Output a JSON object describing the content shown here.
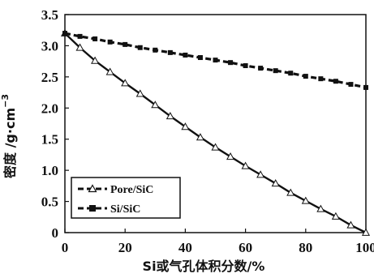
{
  "chart_data": {
    "type": "line",
    "xlabel": "Si或气孔体积分数/%",
    "ylabel": "密度 /g·cm",
    "ylabel_exponent": "−3",
    "xlim": [
      0,
      100
    ],
    "ylim": [
      0,
      3.5
    ],
    "xticks": [
      "0",
      "20",
      "40",
      "60",
      "80",
      "100"
    ],
    "yticks": [
      "0",
      "0.5",
      "1.0",
      "1.5",
      "2.0",
      "2.5",
      "3.0",
      "3.5"
    ],
    "legend_position": "lower-left",
    "series": [
      {
        "name": "Pore/SiC",
        "marker": "open-triangle",
        "color": "#111111",
        "x": [
          0,
          5,
          10,
          15,
          20,
          25,
          30,
          35,
          40,
          45,
          50,
          55,
          60,
          65,
          70,
          75,
          80,
          85,
          90,
          95,
          100
        ],
        "y": [
          3.2,
          2.97,
          2.76,
          2.58,
          2.4,
          2.23,
          2.05,
          1.87,
          1.7,
          1.53,
          1.37,
          1.22,
          1.07,
          0.93,
          0.79,
          0.64,
          0.51,
          0.38,
          0.26,
          0.12,
          0.0
        ]
      },
      {
        "name": "Si/SiC",
        "marker": "filled-square",
        "color": "#111111",
        "x": [
          0,
          5,
          10,
          15,
          20,
          25,
          30,
          35,
          40,
          45,
          50,
          55,
          60,
          65,
          70,
          75,
          80,
          85,
          90,
          95,
          100
        ],
        "y": [
          3.2,
          3.15,
          3.11,
          3.06,
          3.02,
          2.97,
          2.93,
          2.89,
          2.85,
          2.81,
          2.77,
          2.73,
          2.68,
          2.64,
          2.6,
          2.56,
          2.51,
          2.47,
          2.43,
          2.38,
          2.33
        ]
      }
    ]
  }
}
